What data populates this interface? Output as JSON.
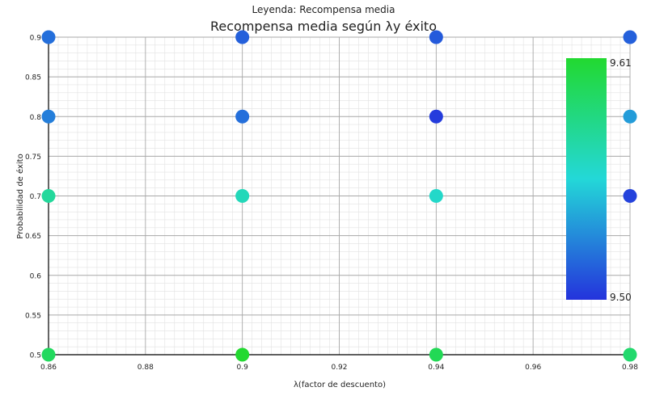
{
  "chart_data": {
    "type": "scatter",
    "title": "Recompensa media según λy éxito",
    "subtitle": "Leyenda: Recompensa media",
    "xlabel": "λ(factor de descuento)",
    "ylabel": "Probabilidad de éxito",
    "xlim": [
      0.86,
      0.98
    ],
    "ylim": [
      0.5,
      0.9
    ],
    "xticks": [
      "0.86",
      "0.88",
      "0.9",
      "0.92",
      "0.94",
      "0.96",
      "0.98"
    ],
    "yticks": [
      "0.5",
      "0.55",
      "0.6",
      "0.65",
      "0.7",
      "0.75",
      "0.8",
      "0.85",
      "0.9"
    ],
    "grid": true,
    "colorbar": {
      "min": 9.5,
      "max": 9.61,
      "min_label": "9.50",
      "max_label": "9.61",
      "placement": "right"
    },
    "points": [
      {
        "x": 0.86,
        "y": 0.9,
        "value": 9.52
      },
      {
        "x": 0.9,
        "y": 0.9,
        "value": 9.515
      },
      {
        "x": 0.94,
        "y": 0.9,
        "value": 9.513
      },
      {
        "x": 0.98,
        "y": 0.9,
        "value": 9.515
      },
      {
        "x": 0.86,
        "y": 0.8,
        "value": 9.525
      },
      {
        "x": 0.9,
        "y": 0.8,
        "value": 9.52
      },
      {
        "x": 0.94,
        "y": 0.8,
        "value": 9.503
      },
      {
        "x": 0.98,
        "y": 0.8,
        "value": 9.535
      },
      {
        "x": 0.86,
        "y": 0.7,
        "value": 9.575
      },
      {
        "x": 0.9,
        "y": 0.7,
        "value": 9.565
      },
      {
        "x": 0.94,
        "y": 0.7,
        "value": 9.56
      },
      {
        "x": 0.98,
        "y": 0.7,
        "value": 9.505
      },
      {
        "x": 0.86,
        "y": 0.5,
        "value": 9.595
      },
      {
        "x": 0.9,
        "y": 0.5,
        "value": 9.61
      },
      {
        "x": 0.94,
        "y": 0.5,
        "value": 9.598
      },
      {
        "x": 0.98,
        "y": 0.5,
        "value": 9.59
      }
    ]
  }
}
